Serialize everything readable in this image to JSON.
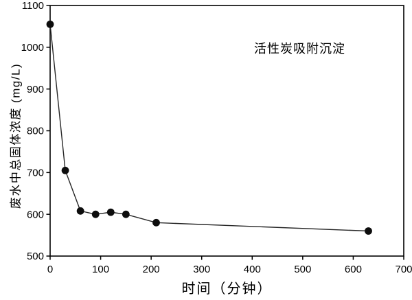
{
  "chart_data": {
    "type": "line",
    "title": "",
    "xlabel": "时间（分钟）",
    "ylabel": "废水中总固体浓度 (mg/L)",
    "annotation": "活性炭吸附沉淀",
    "x": [
      0,
      30,
      60,
      90,
      120,
      150,
      210,
      630
    ],
    "y": [
      1055,
      705,
      608,
      600,
      605,
      600,
      580,
      560
    ],
    "xlim": [
      0,
      700
    ],
    "ylim": [
      500,
      1100
    ],
    "x_ticks": [
      0,
      100,
      200,
      300,
      400,
      500,
      600,
      700
    ],
    "y_ticks": [
      500,
      600,
      700,
      800,
      900,
      1000,
      1100
    ],
    "grid": false,
    "legend": null,
    "marker": "filled-circle",
    "series_name": "活性炭吸附沉淀",
    "colors": {
      "background": "#ffffff",
      "axis": "#000000",
      "line": "#262626",
      "marker": "#0d0d0d",
      "text": "#000000"
    }
  }
}
